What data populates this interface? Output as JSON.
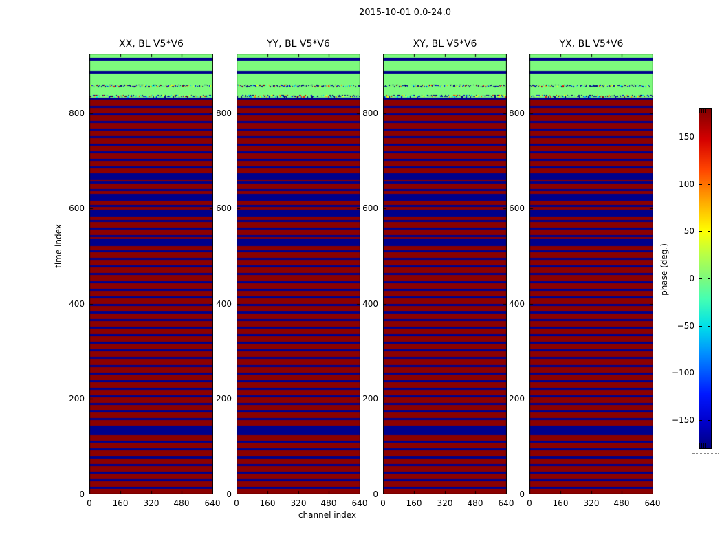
{
  "figure_title": "2015-10-01 0.0-24.0",
  "chart_data": {
    "type": "heatmap",
    "title": "2015-10-01 0.0-24.0",
    "xlabel": "channel index",
    "ylabel": "time index",
    "panels": [
      {
        "label": "XX, BL V5*V6"
      },
      {
        "label": "YY, BL V5*V6"
      },
      {
        "label": "XY, BL V5*V6"
      },
      {
        "label": "YX, BL V5*V6"
      }
    ],
    "x_ticks": [
      "0",
      "160",
      "320",
      "480",
      "640"
    ],
    "x_tick_values": [
      0,
      160,
      320,
      480,
      640
    ],
    "y_ticks": [
      "0",
      "200",
      "400",
      "600",
      "800"
    ],
    "y_tick_values": [
      0,
      200,
      400,
      600,
      800
    ],
    "x_range": [
      0,
      640
    ],
    "y_range": [
      0,
      925
    ],
    "grid": false,
    "colormap": "jet",
    "palette": {
      "pos_phase_red": "#8b0000",
      "neg_phase_blue": "#00008b",
      "zero_phase_green": "#7dfa7d"
    },
    "noise_colors": [
      "#000080",
      "#0000e8",
      "#00c8ff",
      "#00ffd5",
      "#ffff00",
      "#ff9800",
      "#ff2000",
      "#8b0000"
    ],
    "noise_weights": [
      0.45,
      0.12,
      0.08,
      0.07,
      0.08,
      0.08,
      0.08,
      0.04
    ],
    "pattern": {
      "note": "Phase alternates between +180 deg (dark red) and -180 deg (dark blue) in horizontal time stripes for t=0..832; top rows (t~832..925) are near 0 deg (green) with two noisy speckle rows and thin -180 deg lines; identical in all four panels.",
      "stripes": {
        "t_start": 0,
        "t_end": 832,
        "period": 16,
        "red_fraction": 0.73
      },
      "thick_blue_bands": [
        [
          127,
          141
        ],
        [
          521,
          537
        ],
        [
          583,
          597
        ],
        [
          616,
          631
        ],
        [
          659,
          674
        ]
      ],
      "top_bands": [
        {
          "t0": 832,
          "t1": 840,
          "type": "noise"
        },
        {
          "t0": 840,
          "t1": 854,
          "type": "green"
        },
        {
          "t0": 854,
          "t1": 861,
          "type": "noise"
        },
        {
          "t0": 861,
          "t1": 883,
          "type": "green"
        },
        {
          "t0": 883,
          "t1": 889,
          "type": "blue"
        },
        {
          "t0": 889,
          "t1": 910,
          "type": "green"
        },
        {
          "t0": 910,
          "t1": 916,
          "type": "blue"
        },
        {
          "t0": 916,
          "t1": 925,
          "type": "green"
        }
      ]
    },
    "colorbar": {
      "label": "phase (deg.)",
      "tick_labels": [
        "150",
        "100",
        "50",
        "0",
        "−50",
        "−100",
        "−150"
      ],
      "tick_values": [
        150,
        100,
        50,
        0,
        -50,
        -100,
        -150
      ],
      "range": [
        -180,
        180
      ]
    }
  }
}
